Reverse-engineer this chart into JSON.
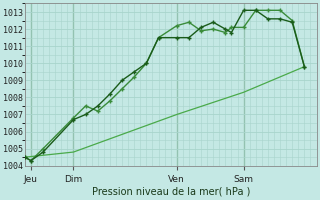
{
  "xlabel": "Pression niveau de la mer( hPa )",
  "background_color": "#c4e8e4",
  "grid_color": "#a8d4cc",
  "line_color_dark": "#1a5c1a",
  "line_color_light": "#3a8c3a",
  "line_color_thin": "#4aaa4a",
  "ylim": [
    1004,
    1013.5
  ],
  "yticks": [
    1004,
    1005,
    1006,
    1007,
    1008,
    1009,
    1010,
    1011,
    1012,
    1013
  ],
  "day_labels": [
    "Jeu",
    "Dim",
    "Ven",
    "Sam"
  ],
  "day_positions": [
    0.5,
    4.0,
    12.5,
    18.0
  ],
  "vline_positions": [
    0.5,
    4.0,
    12.5,
    18.0
  ],
  "xlim": [
    0,
    24
  ],
  "line1_x": [
    0.0,
    0.5,
    1.5,
    4.0,
    5.0,
    6.0,
    7.0,
    8.0,
    9.0,
    10.0,
    11.0,
    12.5,
    13.5,
    14.5,
    15.5,
    16.5,
    17.0,
    18.0,
    19.0,
    20.0,
    21.0,
    22.0,
    23.0
  ],
  "line1_y": [
    1004.5,
    1004.3,
    1004.8,
    1006.7,
    1007.0,
    1007.5,
    1008.2,
    1009.0,
    1009.5,
    1010.0,
    1011.5,
    1011.5,
    1011.5,
    1012.1,
    1012.4,
    1012.0,
    1011.8,
    1013.1,
    1013.1,
    1012.6,
    1012.6,
    1012.4,
    1009.8
  ],
  "line2_x": [
    0.0,
    0.5,
    1.5,
    4.0,
    5.0,
    6.0,
    7.0,
    8.0,
    9.0,
    10.0,
    11.0,
    12.5,
    13.5,
    14.5,
    15.5,
    16.5,
    17.0,
    18.0,
    19.0,
    20.0,
    21.0,
    22.0,
    23.0
  ],
  "line2_y": [
    1004.5,
    1004.3,
    1005.0,
    1006.8,
    1007.5,
    1007.2,
    1007.8,
    1008.5,
    1009.2,
    1010.0,
    1011.5,
    1012.2,
    1012.4,
    1011.9,
    1012.0,
    1011.8,
    1012.1,
    1012.1,
    1013.1,
    1013.1,
    1013.1,
    1012.5,
    1009.8
  ],
  "line3_x": [
    0.0,
    4.0,
    12.5,
    18.0,
    23.0
  ],
  "line3_y": [
    1004.5,
    1004.8,
    1007.0,
    1008.3,
    1009.8
  ]
}
